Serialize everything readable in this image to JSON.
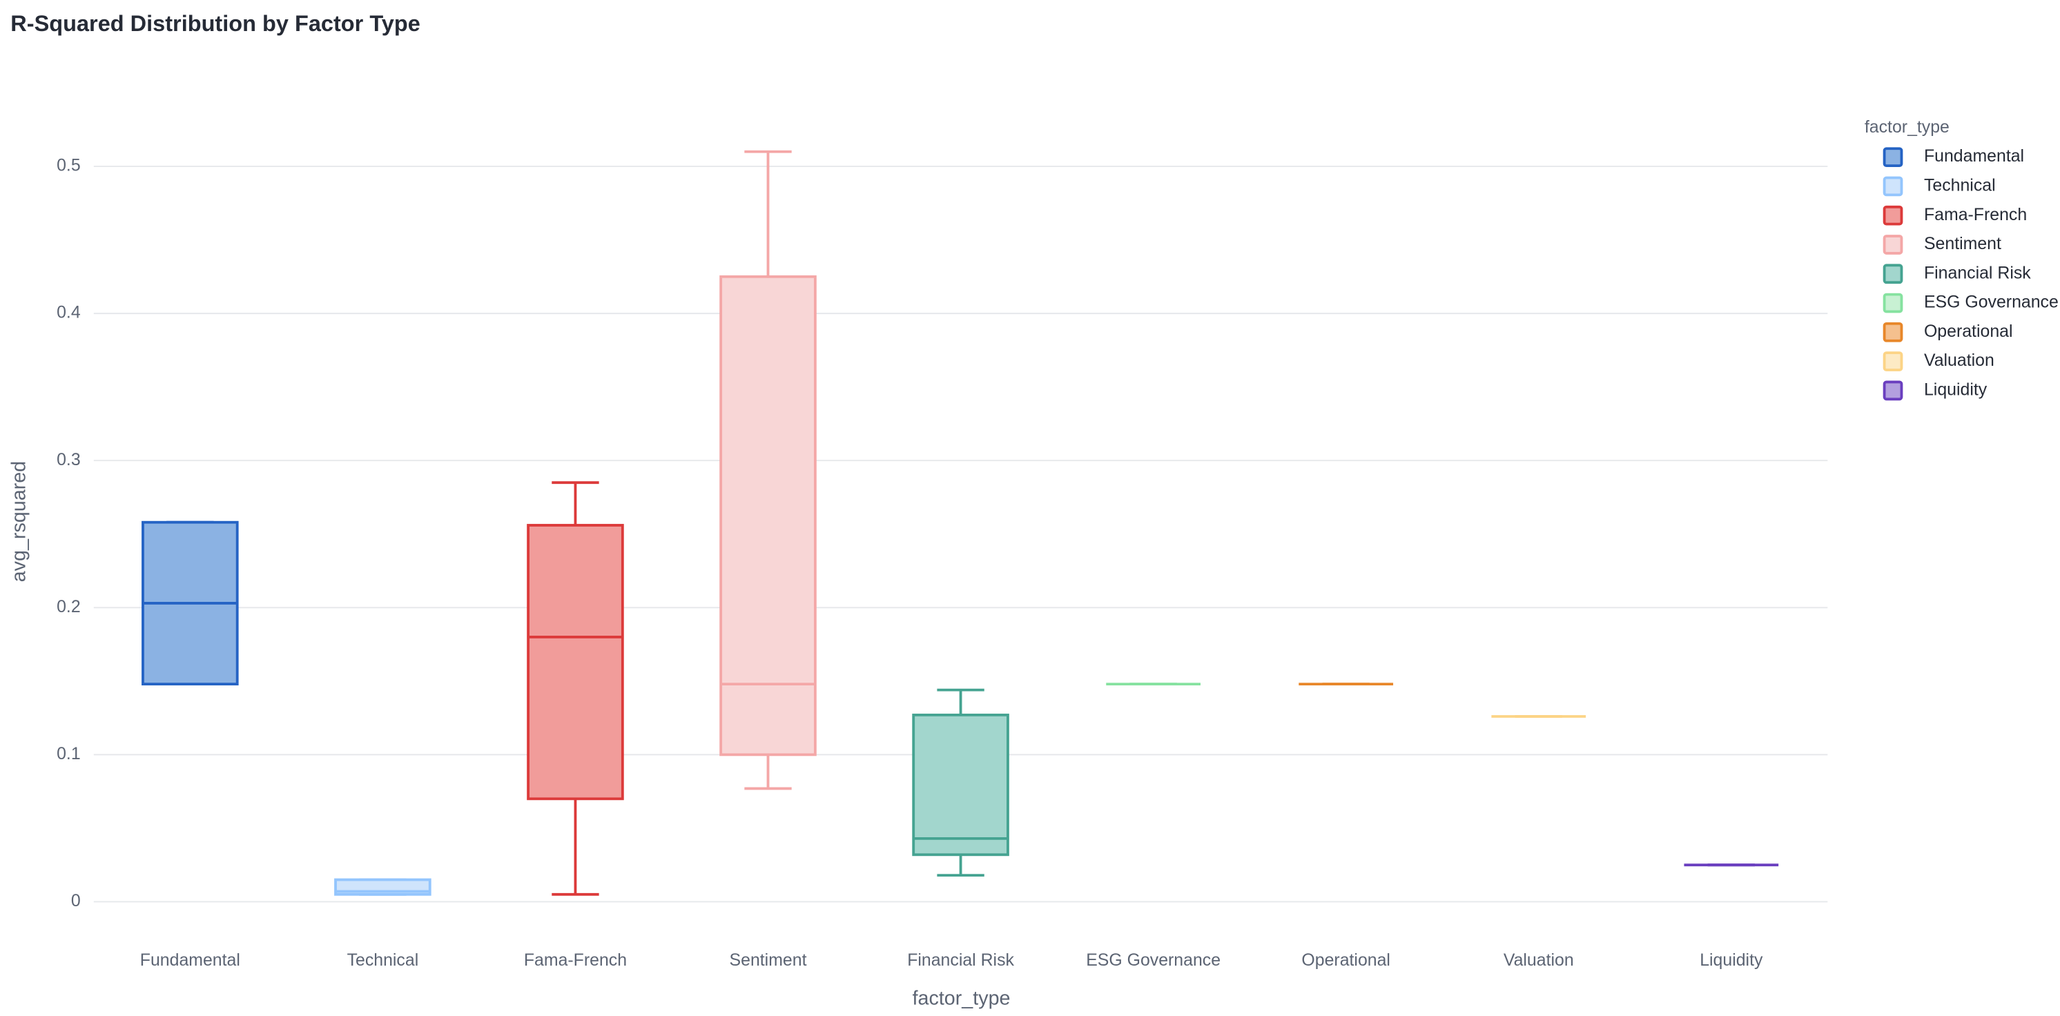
{
  "chart_data": {
    "type": "box",
    "title": "R-Squared Distribution by Factor Type",
    "x_label": "factor_type",
    "y_label": "avg_rsquared",
    "legend_title": "factor_type",
    "ylim": [
      -0.015,
      0.535
    ],
    "yticks": [
      0,
      0.1,
      0.2,
      0.3,
      0.4,
      0.5
    ],
    "grid": true,
    "legend": "right",
    "series": [
      {
        "name": "Fundamental",
        "color": "#2563c4",
        "fill": "#8bb2e3",
        "min": 0.148,
        "q1": 0.148,
        "median": 0.203,
        "q3": 0.258,
        "max": 0.258
      },
      {
        "name": "Technical",
        "color": "#93c5fd",
        "fill": "#cfe4fc",
        "min": 0.005,
        "q1": 0.005,
        "median": 0.007,
        "q3": 0.015,
        "max": 0.015
      },
      {
        "name": "Fama-French",
        "color": "#dc3a3a",
        "fill": "#f19c9a",
        "min": 0.005,
        "q1": 0.07,
        "median": 0.18,
        "q3": 0.256,
        "max": 0.285
      },
      {
        "name": "Sentiment",
        "color": "#f4a7a7",
        "fill": "#f8d6d6",
        "min": 0.077,
        "q1": 0.1,
        "median": 0.148,
        "q3": 0.425,
        "max": 0.51
      },
      {
        "name": "Financial Risk",
        "color": "#45a391",
        "fill": "#a2d6cd",
        "min": 0.018,
        "q1": 0.032,
        "median": 0.043,
        "q3": 0.127,
        "max": 0.144
      },
      {
        "name": "ESG Governance",
        "color": "#86e2a0",
        "fill": "#c8f1d3",
        "min": 0.148,
        "q1": 0.148,
        "median": 0.148,
        "q3": 0.148,
        "max": 0.148
      },
      {
        "name": "Operational",
        "color": "#e8872a",
        "fill": "#f5c08e",
        "min": 0.148,
        "q1": 0.148,
        "median": 0.148,
        "q3": 0.148,
        "max": 0.148
      },
      {
        "name": "Valuation",
        "color": "#fcd486",
        "fill": "#fdeac4",
        "min": 0.126,
        "q1": 0.126,
        "median": 0.126,
        "q3": 0.126,
        "max": 0.126
      },
      {
        "name": "Liquidity",
        "color": "#6a3fbf",
        "fill": "#b3a0df",
        "min": 0.025,
        "q1": 0.025,
        "median": 0.025,
        "q3": 0.025,
        "max": 0.025
      }
    ]
  }
}
